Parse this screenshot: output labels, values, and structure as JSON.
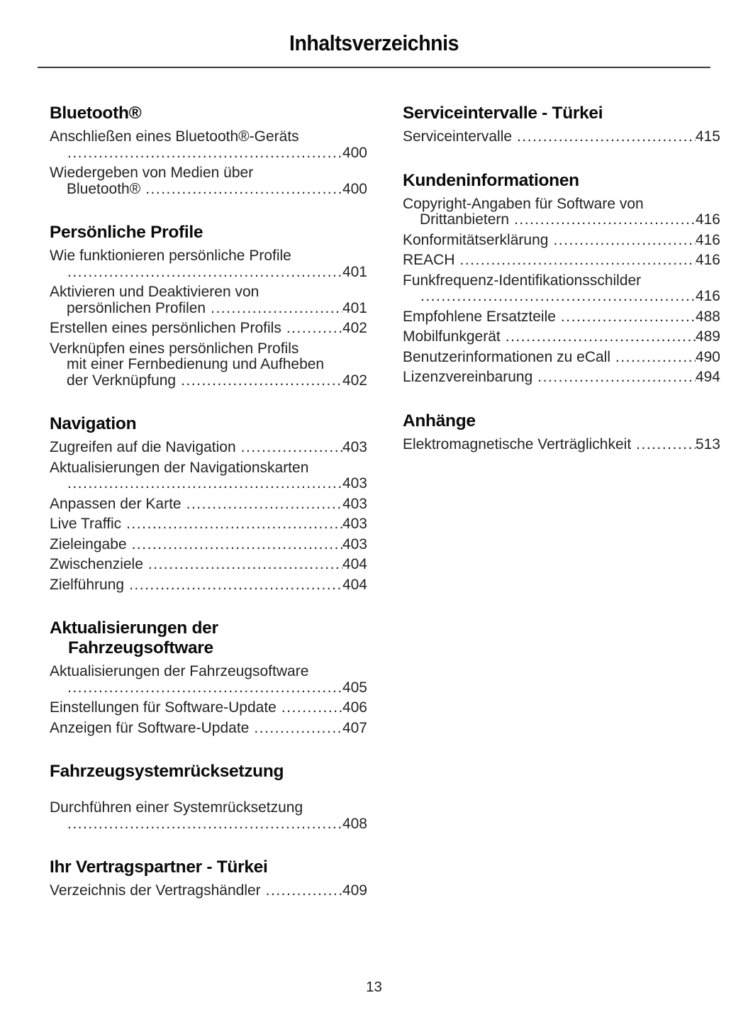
{
  "page": {
    "title": "Inhaltsverzeichnis",
    "page_number": "13"
  },
  "toc": {
    "columns": [
      {
        "sections": [
          {
            "heading_lines": [
              "Bluetooth®"
            ],
            "entries": [
              {
                "lines": [
                  "Anschließen eines Bluetooth®-Geräts",
                  ""
                ],
                "page": "400"
              },
              {
                "lines": [
                  "Wiedergeben von Medien über",
                  "Bluetooth®"
                ],
                "page": "400"
              }
            ]
          },
          {
            "heading_lines": [
              "Persönliche Profile"
            ],
            "entries": [
              {
                "lines": [
                  "Wie funktionieren persönliche Profile",
                  ""
                ],
                "page": "401"
              },
              {
                "lines": [
                  "Aktivieren und Deaktivieren von",
                  "persönlichen Profilen"
                ],
                "page": "401"
              },
              {
                "lines": [
                  "Erstellen eines persönlichen Profils"
                ],
                "page": "402"
              },
              {
                "lines": [
                  "Verknüpfen eines persönlichen Profils",
                  "mit einer Fernbedienung und Aufheben",
                  "der Verknüpfung"
                ],
                "page": "402"
              }
            ]
          },
          {
            "heading_lines": [
              "Navigation"
            ],
            "entries": [
              {
                "lines": [
                  "Zugreifen auf die Navigation"
                ],
                "page": "403"
              },
              {
                "lines": [
                  "Aktualisierungen der Navigationskarten",
                  ""
                ],
                "page": "403"
              },
              {
                "lines": [
                  "Anpassen der Karte"
                ],
                "page": "403"
              },
              {
                "lines": [
                  "Live Traffic"
                ],
                "page": "403"
              },
              {
                "lines": [
                  "Zieleingabe"
                ],
                "page": "403"
              },
              {
                "lines": [
                  "Zwischenziele"
                ],
                "page": "404"
              },
              {
                "lines": [
                  "Zielführung"
                ],
                "page": "404"
              }
            ]
          },
          {
            "heading_lines": [
              "Aktualisierungen der",
              "Fahrzeugsoftware"
            ],
            "entries": [
              {
                "lines": [
                  "Aktualisierungen der Fahrzeugsoftware",
                  ""
                ],
                "page": "405"
              },
              {
                "lines": [
                  "Einstellungen für Software-Update"
                ],
                "page": "406"
              },
              {
                "lines": [
                  "Anzeigen für Software-Update"
                ],
                "page": "407"
              }
            ]
          },
          {
            "heading_lines": [
              "Fahrzeugsystemrücksetzung"
            ],
            "extra_gap": true,
            "entries": [
              {
                "lines": [
                  "Durchführen einer Systemrücksetzung",
                  ""
                ],
                "page": "408"
              }
            ]
          },
          {
            "heading_lines": [
              "Ihr Vertragspartner - Türkei"
            ],
            "entries": [
              {
                "lines": [
                  "Verzeichnis der Vertragshändler"
                ],
                "page": "409"
              }
            ]
          }
        ]
      },
      {
        "sections": [
          {
            "heading_lines": [
              "Serviceintervalle - Türkei"
            ],
            "entries": [
              {
                "lines": [
                  "Serviceintervalle"
                ],
                "page": "415"
              }
            ]
          },
          {
            "heading_lines": [
              "Kundeninformationen"
            ],
            "entries": [
              {
                "lines": [
                  "Copyright-Angaben für Software von",
                  "Drittanbietern"
                ],
                "page": "416"
              },
              {
                "lines": [
                  "Konformitätserklärung"
                ],
                "page": "416"
              },
              {
                "lines": [
                  "REACH"
                ],
                "page": "416"
              },
              {
                "lines": [
                  "Funkfrequenz-Identifikationsschilder",
                  ""
                ],
                "page": "416"
              },
              {
                "lines": [
                  "Empfohlene Ersatzteile"
                ],
                "page": "488"
              },
              {
                "lines": [
                  "Mobilfunkgerät"
                ],
                "page": "489"
              },
              {
                "lines": [
                  "Benutzerinformationen zu eCall"
                ],
                "page": "490"
              },
              {
                "lines": [
                  "Lizenzvereinbarung"
                ],
                "page": "494"
              }
            ]
          },
          {
            "heading_lines": [
              "Anhänge"
            ],
            "entries": [
              {
                "lines": [
                  "Elektromagnetische Verträglichkeit"
                ],
                "page": "513"
              }
            ]
          }
        ]
      }
    ]
  }
}
